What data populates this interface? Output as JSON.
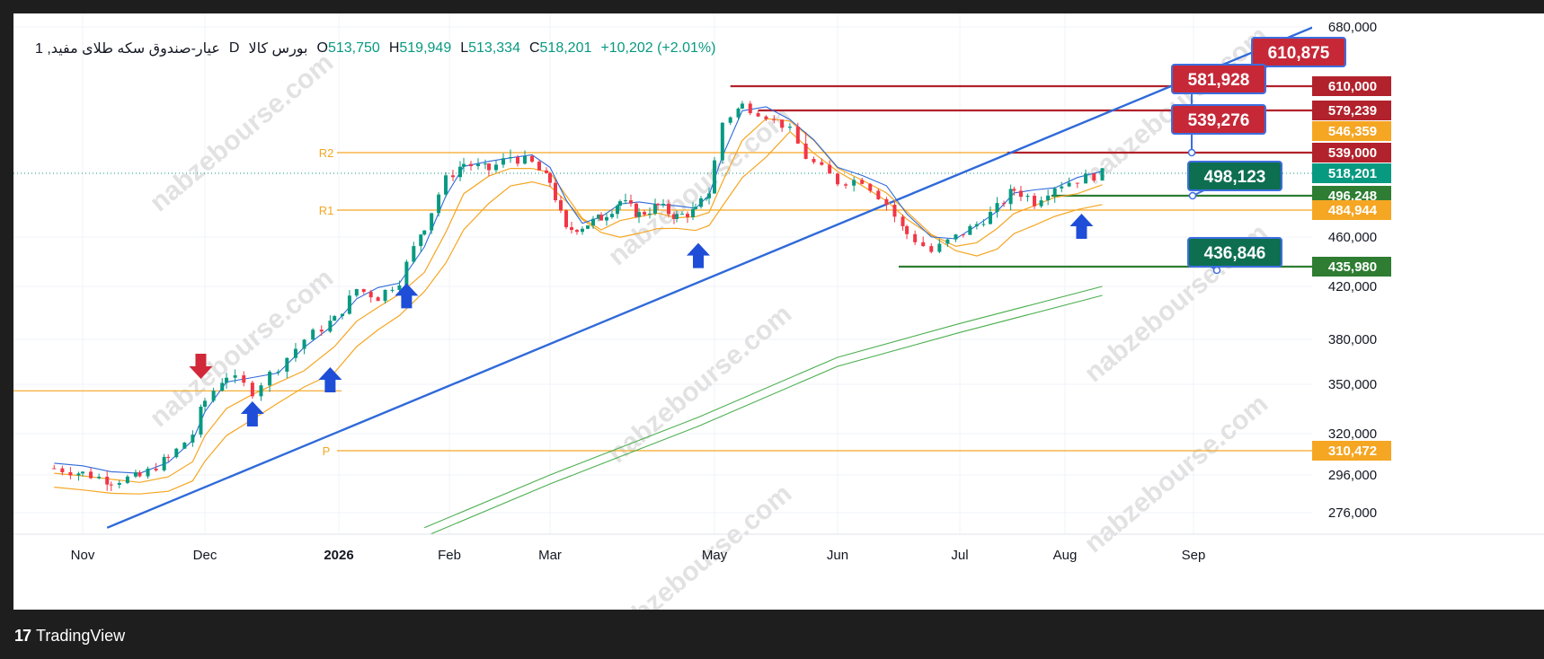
{
  "legend": {
    "symbol": "عیار-صندوق سکه طلای مفید, 1",
    "interval": "D",
    "exchange": "بورس کالا",
    "open_key": "O",
    "open": "513,750",
    "high_key": "H",
    "high": "519,949",
    "low_key": "L",
    "low": "513,334",
    "close_key": "C",
    "close": "518,201",
    "change": "+10,202 (+2.01%)"
  },
  "footer": {
    "brand": "TradingView",
    "logo": "tv-logo-icon"
  },
  "watermark": "nabzebourse.com",
  "colors": {
    "up": "#089981",
    "down": "#f23645",
    "trend": "#2f6ad9",
    "pivot": "#f5a623",
    "band_orange": "#f5a623",
    "band_blue": "#2f6ad9",
    "band_green": "#4caf50",
    "red_line": "#b2222c",
    "green_line": "#2e7d32",
    "callout_red": "#c62838",
    "callout_green": "#0d6e50"
  },
  "chart_data": {
    "type": "candlestick",
    "y_ticks": [
      "680,000",
      "460,000",
      "420,000",
      "380,000",
      "350,000",
      "320,000",
      "296,000",
      "276,000"
    ],
    "y_tick_values": [
      680000,
      460000,
      420000,
      380000,
      350000,
      320000,
      296000,
      276000
    ],
    "x_ticks": [
      {
        "label": "Nov",
        "date": "2025-11-01"
      },
      {
        "label": "Dec",
        "date": "2025-12-01"
      },
      {
        "label": "2026",
        "date": "2026-01-01",
        "bold": true
      },
      {
        "label": "Feb",
        "date": "2026-02-01"
      },
      {
        "label": "Mar",
        "date": "2026-03-01"
      },
      {
        "label": "May",
        "date": "2026-05-01"
      },
      {
        "label": "Jun",
        "date": "2026-06-01"
      },
      {
        "label": "Jul",
        "date": "2026-07-01"
      },
      {
        "label": "Aug",
        "date": "2026-08-01"
      },
      {
        "label": "Sep",
        "date": "2026-09-01"
      }
    ],
    "last_price": 518201,
    "price_tags": [
      {
        "label": "610,000",
        "value": 610000,
        "color": "#b2222c"
      },
      {
        "label": "579,239",
        "value": 579239,
        "color": "#b2222c"
      },
      {
        "label": "546,359",
        "value": 546359,
        "color": "#f5a623"
      },
      {
        "label": "539,000",
        "value": 539000,
        "color": "#b2222c"
      },
      {
        "label": "518,201",
        "value": 518201,
        "color": "#089981"
      },
      {
        "label": "496,248",
        "value": 496248,
        "color": "#2e7d32"
      },
      {
        "label": "484,944",
        "value": 484944,
        "color": "#f5a623"
      },
      {
        "label": "435,980",
        "value": 435980,
        "color": "#2e7d32"
      },
      {
        "label": "310,472",
        "value": 310472,
        "color": "#f5a623"
      }
    ],
    "pivots": [
      {
        "label": "R2",
        "value": 539000
      },
      {
        "label": "R1",
        "value": 484944
      },
      {
        "label": "P",
        "value": 310472
      }
    ],
    "support_line": {
      "value": 346000
    },
    "horizontal_levels": [
      {
        "value": 610000,
        "from": "2026-05-05",
        "color": "red"
      },
      {
        "value": 579239,
        "from": "2026-05-12",
        "color": "red"
      },
      {
        "value": 539000,
        "from": "2026-07-15",
        "color": "red"
      },
      {
        "value": 496248,
        "from": "2026-07-28",
        "color": "green"
      },
      {
        "value": 435980,
        "from": "2026-06-16",
        "color": "green"
      }
    ],
    "trendline": {
      "from_date": "2025-11-07",
      "from": 268000,
      "to_date": "2026-09-30",
      "to": 680000
    },
    "callouts": [
      {
        "label": "610,875",
        "value": 610875,
        "color": "red"
      },
      {
        "label": "581,928",
        "value": 581928,
        "color": "red"
      },
      {
        "label": "539,276",
        "value": 539276,
        "color": "red"
      },
      {
        "label": "498,123",
        "value": 498123,
        "color": "green"
      },
      {
        "label": "436,846",
        "value": 436846,
        "color": "green"
      }
    ],
    "arrows": [
      {
        "date": "2025-11-30",
        "value": 362000,
        "direction": "down"
      },
      {
        "date": "2025-12-12",
        "value": 332000,
        "direction": "up"
      },
      {
        "date": "2025-12-30",
        "value": 353000,
        "direction": "up"
      },
      {
        "date": "2026-01-20",
        "value": 413000,
        "direction": "up"
      },
      {
        "date": "2026-04-25",
        "value": 445000,
        "direction": "up"
      },
      {
        "date": "2026-08-05",
        "value": 470000,
        "direction": "up"
      }
    ],
    "closes": [
      [
        "2025-10-25",
        300000
      ],
      [
        "2025-11-01",
        297000
      ],
      [
        "2025-11-08",
        293000
      ],
      [
        "2025-11-15",
        295000
      ],
      [
        "2025-11-22",
        306000
      ],
      [
        "2025-11-28",
        320000
      ],
      [
        "2025-12-01",
        340000
      ],
      [
        "2025-12-06",
        356000
      ],
      [
        "2025-12-12",
        346000
      ],
      [
        "2025-12-18",
        362000
      ],
      [
        "2025-12-24",
        380000
      ],
      [
        "2025-12-31",
        395000
      ],
      [
        "2026-01-06",
        418000
      ],
      [
        "2026-01-12",
        412000
      ],
      [
        "2026-01-18",
        425000
      ],
      [
        "2026-01-25",
        470000
      ],
      [
        "2026-01-31",
        512000
      ],
      [
        "2026-02-05",
        528000
      ],
      [
        "2026-02-12",
        522000
      ],
      [
        "2026-02-18",
        535000
      ],
      [
        "2026-02-24",
        528000
      ],
      [
        "2026-03-01",
        510000
      ],
      [
        "2026-03-07",
        466000
      ],
      [
        "2026-03-13",
        470000
      ],
      [
        "2026-03-20",
        478000
      ],
      [
        "2026-03-27",
        492000
      ],
      [
        "2026-04-03",
        481000
      ],
      [
        "2026-04-10",
        488000
      ],
      [
        "2026-04-17",
        479000
      ],
      [
        "2026-04-24",
        484000
      ],
      [
        "2026-04-29",
        500000
      ],
      [
        "2026-05-03",
        560000
      ],
      [
        "2026-05-08",
        586000
      ],
      [
        "2026-05-14",
        570000
      ],
      [
        "2026-05-20",
        548000
      ],
      [
        "2026-05-26",
        528000
      ],
      [
        "2026-06-01",
        510000
      ],
      [
        "2026-06-07",
        512000
      ],
      [
        "2026-06-13",
        490000
      ],
      [
        "2026-06-18",
        463000
      ],
      [
        "2026-06-24",
        448000
      ],
      [
        "2026-06-30",
        460000
      ],
      [
        "2026-07-06",
        472000
      ],
      [
        "2026-07-12",
        486000
      ],
      [
        "2026-07-17",
        502000
      ],
      [
        "2026-07-23",
        492000
      ],
      [
        "2026-07-29",
        506000
      ],
      [
        "2026-08-04",
        512000
      ],
      [
        "2026-08-10",
        518201
      ]
    ]
  }
}
